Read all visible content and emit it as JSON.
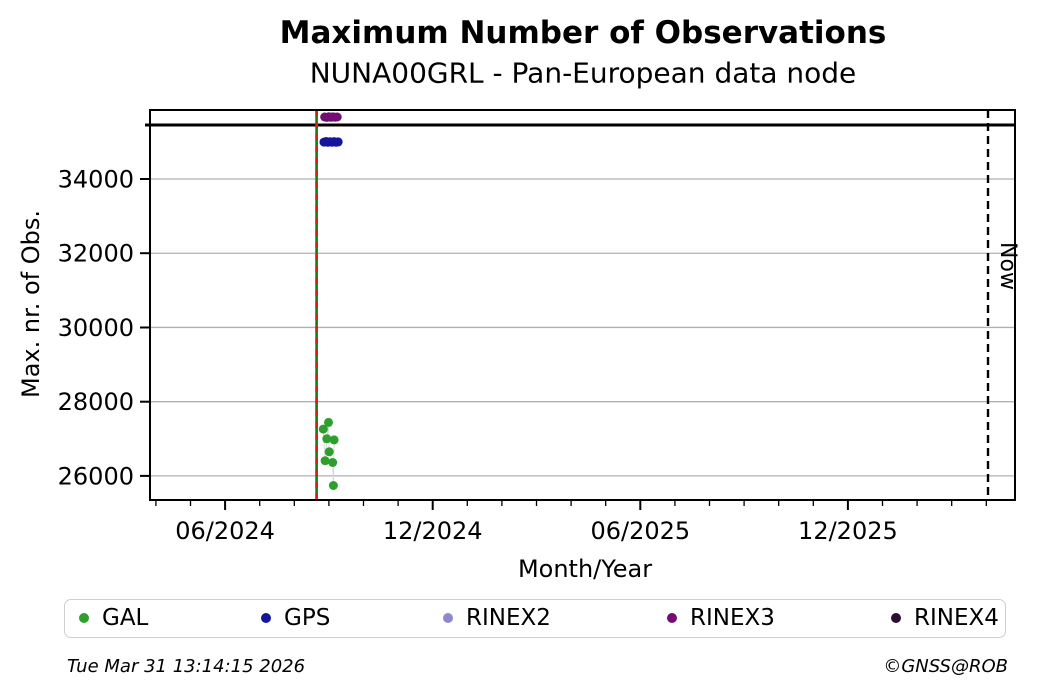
{
  "title": "Maximum Number of Observations",
  "subtitle": "NUNA00GRL - Pan-European data node",
  "footer": {
    "timestamp": "Tue Mar 31 13:14:15 2026",
    "credit": "©GNSS@ROB"
  },
  "legend": {
    "items": [
      {
        "label": "GAL",
        "color": "#2e9e2e"
      },
      {
        "label": "GPS",
        "color": "#16169c"
      },
      {
        "label": "RINEX2",
        "color": "#8d89cb"
      },
      {
        "label": "RINEX3",
        "color": "#730c73"
      },
      {
        "label": "RINEX4",
        "color": "#2a0f33"
      }
    ]
  },
  "chart_data": {
    "type": "scatter",
    "title": "Maximum Number of Observations",
    "subtitle": "NUNA00GRL - Pan-European data node",
    "xlabel": "Month/Year",
    "ylabel": "Max. nr. of Obs.",
    "x_unit": "months since 2024-01-01",
    "xlim": [
      2.83,
      27.83
    ],
    "ylim": [
      25350,
      35860
    ],
    "grid": {
      "horizontal": true,
      "vertical": false,
      "color": "#b0b0b0"
    },
    "x_major_ticks": [
      {
        "m": 5,
        "label": "06/2024"
      },
      {
        "m": 11,
        "label": "12/2024"
      },
      {
        "m": 17,
        "label": "06/2025"
      },
      {
        "m": 23,
        "label": "12/2025"
      }
    ],
    "x_minor_tick_step_months": 1,
    "y_ticks": [
      {
        "v": 26000,
        "label": "26000"
      },
      {
        "v": 28000,
        "label": "28000"
      },
      {
        "v": 30000,
        "label": "30000"
      },
      {
        "v": 32000,
        "label": "32000"
      },
      {
        "v": 34000,
        "label": "34000"
      }
    ],
    "annotations": {
      "max_hline": {
        "value": 35455,
        "color": "#000000",
        "style": "solid",
        "width": 3
      },
      "event_vline": {
        "m": 7.645,
        "approx_date": "2024-08-20",
        "color_solid": "#0e7d0e",
        "color_dash": "#d42020",
        "style": "green solid with red dashes"
      },
      "now_vline": {
        "m": 27.05,
        "label": "Now",
        "color": "#000000",
        "style": "dashed"
      }
    },
    "series": [
      {
        "name": "GAL",
        "color": "#2e9e2e",
        "connect": true,
        "connector_color": "#d8d8d8",
        "points": [
          [
            7.84,
            27260
          ],
          [
            7.89,
            26410
          ],
          [
            7.94,
            27000
          ],
          [
            7.99,
            27440
          ],
          [
            8.01,
            26650
          ],
          [
            8.11,
            26360
          ],
          [
            8.13,
            25740
          ],
          [
            8.15,
            26970
          ]
        ]
      },
      {
        "name": "GPS",
        "color": "#16169c",
        "connect": false,
        "points": [
          [
            7.86,
            34995
          ],
          [
            7.92,
            35010
          ],
          [
            7.97,
            34990
          ],
          [
            8.03,
            35005
          ],
          [
            8.09,
            34992
          ],
          [
            8.15,
            35008
          ],
          [
            8.21,
            34990
          ],
          [
            8.27,
            35000
          ]
        ]
      },
      {
        "name": "RINEX2",
        "color": "#8d89cb",
        "connect": false,
        "points": []
      },
      {
        "name": "RINEX3",
        "color": "#730c73",
        "connect": false,
        "points": [
          [
            7.88,
            35672
          ],
          [
            7.94,
            35660
          ],
          [
            8.0,
            35678
          ],
          [
            8.06,
            35664
          ],
          [
            8.12,
            35674
          ],
          [
            8.18,
            35666
          ],
          [
            8.24,
            35672
          ]
        ]
      },
      {
        "name": "RINEX4",
        "color": "#2a0f33",
        "connect": false,
        "points": []
      }
    ]
  }
}
